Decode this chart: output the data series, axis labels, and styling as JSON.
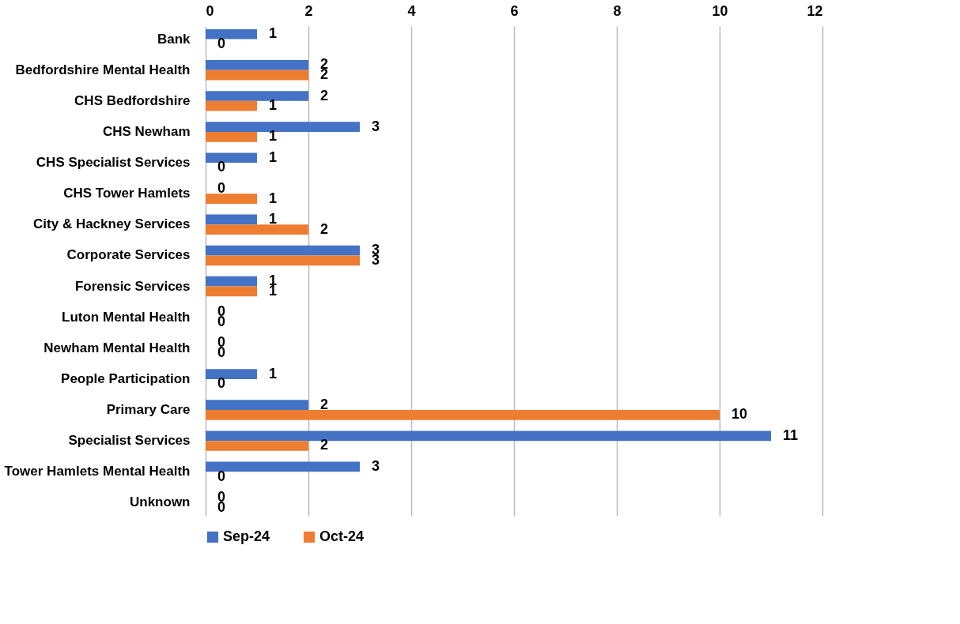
{
  "chart_data": {
    "type": "bar",
    "orientation": "horizontal",
    "categories": [
      "Bank",
      "Bedfordshire Mental Health",
      "CHS Bedfordshire",
      "CHS Newham",
      "CHS Specialist Services",
      "CHS Tower Hamlets",
      "City & Hackney Services",
      "Corporate Services",
      "Forensic Services",
      "Luton Mental Health",
      "Newham Mental Health",
      "People Participation",
      "Primary Care",
      "Specialist Services",
      "Tower Hamlets Mental Health",
      "Unknown"
    ],
    "series": [
      {
        "name": "Sep-24",
        "color": "#4472c4",
        "values": [
          1,
          2,
          2,
          3,
          1,
          0,
          1,
          3,
          1,
          0,
          0,
          1,
          2,
          11,
          3,
          0
        ]
      },
      {
        "name": "Oct-24",
        "color": "#ed7d31",
        "values": [
          0,
          2,
          1,
          1,
          0,
          1,
          2,
          3,
          1,
          0,
          0,
          0,
          10,
          2,
          0,
          0
        ]
      }
    ],
    "xlim": [
      0,
      12
    ],
    "xticks": [
      0,
      2,
      4,
      6,
      8,
      10,
      12
    ],
    "grid": "x",
    "legend": "bottom",
    "data_labels": true
  }
}
